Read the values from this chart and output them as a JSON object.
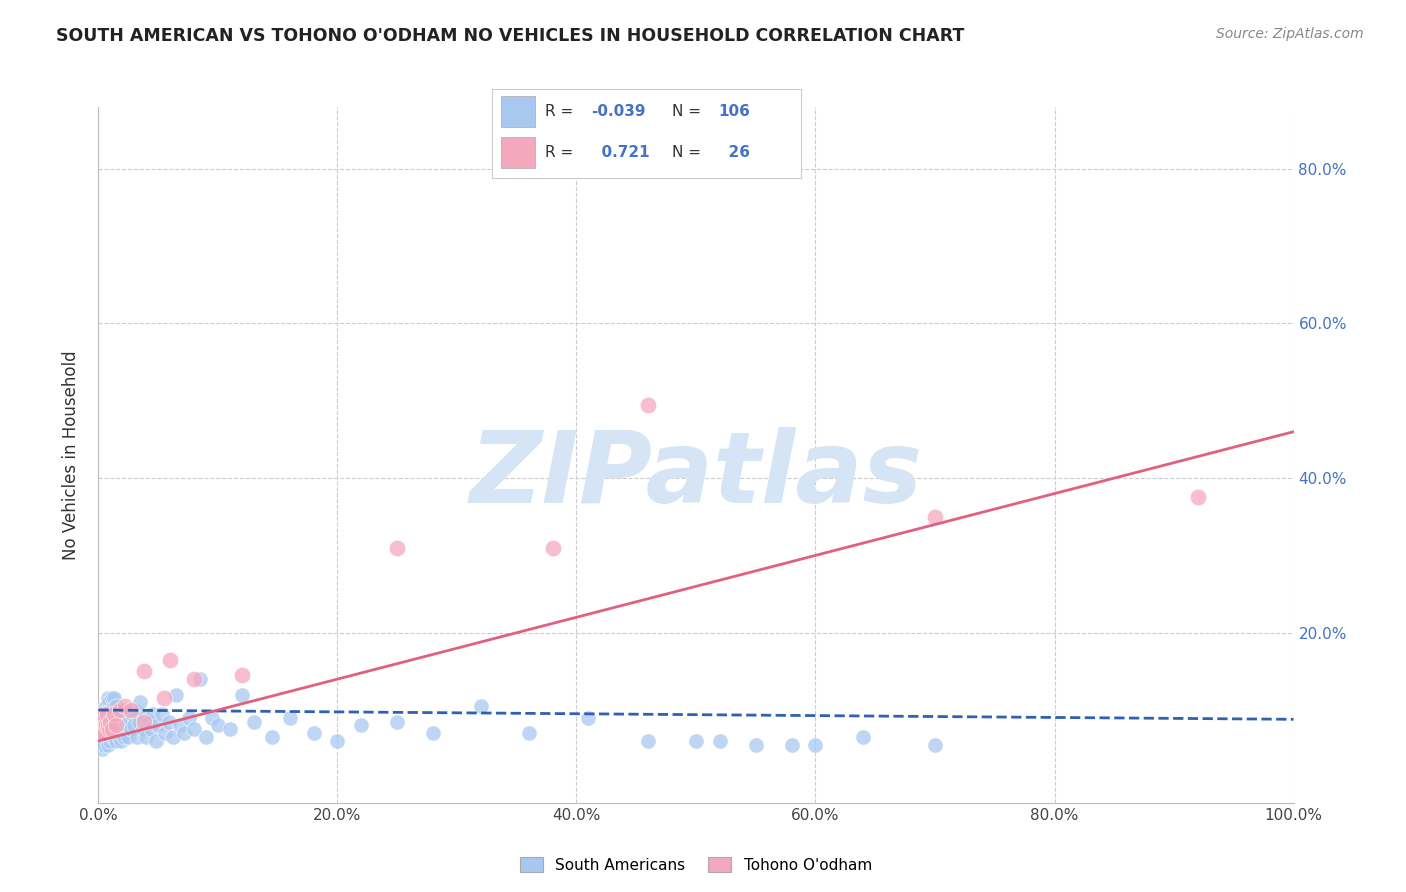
{
  "title": "SOUTH AMERICAN VS TOHONO O'ODHAM NO VEHICLES IN HOUSEHOLD CORRELATION CHART",
  "source": "Source: ZipAtlas.com",
  "ylabel": "No Vehicles in Household",
  "xlim": [
    0,
    1.0
  ],
  "ylim": [
    -0.02,
    0.88
  ],
  "xtick_labels": [
    "0.0%",
    "",
    "",
    "",
    "",
    "20.0%",
    "",
    "",
    "",
    "",
    "40.0%",
    "",
    "",
    "",
    "",
    "60.0%",
    "",
    "",
    "",
    "",
    "80.0%",
    "",
    "",
    "",
    "",
    "100.0%"
  ],
  "xtick_values": [
    0.0,
    0.04,
    0.08,
    0.12,
    0.16,
    0.2,
    0.24,
    0.28,
    0.32,
    0.36,
    0.4,
    0.44,
    0.48,
    0.52,
    0.56,
    0.6,
    0.64,
    0.68,
    0.72,
    0.76,
    0.8,
    0.84,
    0.88,
    0.92,
    0.96,
    1.0
  ],
  "ytick_labels": [
    "20.0%",
    "40.0%",
    "60.0%",
    "80.0%"
  ],
  "ytick_values": [
    0.2,
    0.4,
    0.6,
    0.8
  ],
  "grid_ytick_values": [
    0.2,
    0.4,
    0.6,
    0.8
  ],
  "grid_xtick_values": [
    0.0,
    0.2,
    0.4,
    0.6,
    0.8,
    1.0
  ],
  "blue_r": -0.039,
  "blue_n": 106,
  "pink_r": 0.721,
  "pink_n": 26,
  "blue_color": "#a8c8f0",
  "pink_color": "#f4a8be",
  "blue_line_color": "#3060b0",
  "pink_line_color": "#e06080",
  "grid_color": "#cccccc",
  "background_color": "#ffffff",
  "watermark_text": "ZIPatlas",
  "watermark_color": "#d5e5f5",
  "legend_label_blue": "South Americans",
  "legend_label_pink": "Tohono O'odham",
  "blue_scatter_x": [
    0.002,
    0.003,
    0.003,
    0.004,
    0.004,
    0.004,
    0.005,
    0.005,
    0.005,
    0.006,
    0.006,
    0.006,
    0.007,
    0.007,
    0.007,
    0.008,
    0.008,
    0.008,
    0.008,
    0.009,
    0.009,
    0.009,
    0.01,
    0.01,
    0.01,
    0.011,
    0.011,
    0.011,
    0.012,
    0.012,
    0.012,
    0.013,
    0.013,
    0.013,
    0.014,
    0.014,
    0.015,
    0.015,
    0.015,
    0.016,
    0.016,
    0.017,
    0.017,
    0.018,
    0.018,
    0.019,
    0.019,
    0.02,
    0.02,
    0.021,
    0.021,
    0.022,
    0.022,
    0.023,
    0.024,
    0.025,
    0.026,
    0.027,
    0.028,
    0.03,
    0.031,
    0.032,
    0.034,
    0.035,
    0.037,
    0.038,
    0.04,
    0.042,
    0.044,
    0.046,
    0.048,
    0.05,
    0.053,
    0.056,
    0.059,
    0.062,
    0.065,
    0.068,
    0.072,
    0.076,
    0.08,
    0.085,
    0.09,
    0.095,
    0.1,
    0.11,
    0.12,
    0.13,
    0.145,
    0.16,
    0.18,
    0.2,
    0.22,
    0.25,
    0.28,
    0.32,
    0.36,
    0.41,
    0.46,
    0.52,
    0.58,
    0.64,
    0.7,
    0.5,
    0.55,
    0.6
  ],
  "blue_scatter_y": [
    0.07,
    0.05,
    0.09,
    0.06,
    0.08,
    0.1,
    0.055,
    0.075,
    0.095,
    0.065,
    0.085,
    0.105,
    0.06,
    0.08,
    0.1,
    0.055,
    0.075,
    0.095,
    0.115,
    0.065,
    0.085,
    0.11,
    0.06,
    0.08,
    0.1,
    0.07,
    0.09,
    0.115,
    0.065,
    0.085,
    0.105,
    0.07,
    0.09,
    0.115,
    0.075,
    0.095,
    0.06,
    0.08,
    0.105,
    0.07,
    0.095,
    0.065,
    0.085,
    0.075,
    0.1,
    0.06,
    0.085,
    0.07,
    0.095,
    0.065,
    0.09,
    0.075,
    0.1,
    0.08,
    0.095,
    0.065,
    0.085,
    0.075,
    0.095,
    0.08,
    0.1,
    0.065,
    0.085,
    0.11,
    0.075,
    0.09,
    0.065,
    0.085,
    0.075,
    0.095,
    0.06,
    0.08,
    0.095,
    0.07,
    0.085,
    0.065,
    0.12,
    0.08,
    0.07,
    0.09,
    0.075,
    0.14,
    0.065,
    0.09,
    0.08,
    0.075,
    0.12,
    0.085,
    0.065,
    0.09,
    0.07,
    0.06,
    0.08,
    0.085,
    0.07,
    0.105,
    0.07,
    0.09,
    0.06,
    0.06,
    0.055,
    0.065,
    0.055,
    0.06,
    0.055,
    0.055
  ],
  "pink_scatter_x": [
    0.002,
    0.003,
    0.004,
    0.005,
    0.006,
    0.007,
    0.008,
    0.009,
    0.01,
    0.011,
    0.013,
    0.015,
    0.018,
    0.022,
    0.027,
    0.038,
    0.055,
    0.08,
    0.12,
    0.038,
    0.06,
    0.25,
    0.38,
    0.46,
    0.7,
    0.92
  ],
  "pink_scatter_y": [
    0.07,
    0.085,
    0.095,
    0.07,
    0.08,
    0.095,
    0.08,
    0.075,
    0.085,
    0.075,
    0.095,
    0.08,
    0.1,
    0.105,
    0.1,
    0.085,
    0.115,
    0.14,
    0.145,
    0.15,
    0.165,
    0.31,
    0.31,
    0.495,
    0.35,
    0.375
  ],
  "blue_line_start_y": 0.1,
  "blue_line_end_y": 0.088,
  "pink_line_start_y": 0.06,
  "pink_line_end_y": 0.46
}
